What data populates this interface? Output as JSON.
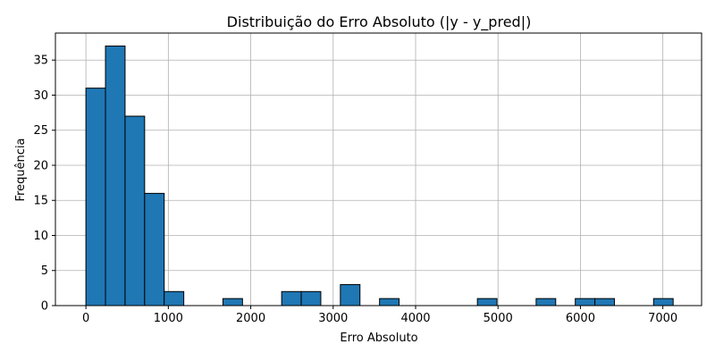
{
  "chart_data": {
    "type": "bar",
    "title": "Distribuição do Erro Absoluto (|y - y_pred|)",
    "xlabel": "Erro Absoluto",
    "ylabel": "Frequência",
    "xlim": [
      -370,
      7470
    ],
    "ylim": [
      0,
      38.85
    ],
    "xticks": [
      0,
      1000,
      2000,
      3000,
      4000,
      5000,
      6000,
      7000
    ],
    "yticks": [
      0,
      5,
      10,
      15,
      20,
      25,
      30,
      35
    ],
    "grid": true,
    "bin_width": 237.5,
    "bins": [
      {
        "start": 0,
        "end": 237.5,
        "count": 31
      },
      {
        "start": 237.5,
        "end": 475,
        "count": 37
      },
      {
        "start": 475,
        "end": 712.5,
        "count": 27
      },
      {
        "start": 712.5,
        "end": 950,
        "count": 16
      },
      {
        "start": 950,
        "end": 1187.5,
        "count": 2
      },
      {
        "start": 1187.5,
        "end": 1425,
        "count": 0
      },
      {
        "start": 1425,
        "end": 1662.5,
        "count": 0
      },
      {
        "start": 1662.5,
        "end": 1900,
        "count": 1
      },
      {
        "start": 1900,
        "end": 2137.5,
        "count": 0
      },
      {
        "start": 2137.5,
        "end": 2375,
        "count": 0
      },
      {
        "start": 2375,
        "end": 2612.5,
        "count": 2
      },
      {
        "start": 2612.5,
        "end": 2850,
        "count": 2
      },
      {
        "start": 2850,
        "end": 3087.5,
        "count": 0
      },
      {
        "start": 3087.5,
        "end": 3325,
        "count": 3
      },
      {
        "start": 3325,
        "end": 3562.5,
        "count": 0
      },
      {
        "start": 3562.5,
        "end": 3800,
        "count": 1
      },
      {
        "start": 3800,
        "end": 4037.5,
        "count": 0
      },
      {
        "start": 4037.5,
        "end": 4275,
        "count": 0
      },
      {
        "start": 4275,
        "end": 4512.5,
        "count": 0
      },
      {
        "start": 4512.5,
        "end": 4750,
        "count": 0
      },
      {
        "start": 4750,
        "end": 4987.5,
        "count": 1
      },
      {
        "start": 4987.5,
        "end": 5225,
        "count": 0
      },
      {
        "start": 5225,
        "end": 5462.5,
        "count": 0
      },
      {
        "start": 5462.5,
        "end": 5700,
        "count": 1
      },
      {
        "start": 5700,
        "end": 5937.5,
        "count": 0
      },
      {
        "start": 5937.5,
        "end": 6175,
        "count": 1
      },
      {
        "start": 6175,
        "end": 6412.5,
        "count": 1
      },
      {
        "start": 6412.5,
        "end": 6650,
        "count": 0
      },
      {
        "start": 6650,
        "end": 6887.5,
        "count": 0
      },
      {
        "start": 6887.5,
        "end": 7125,
        "count": 1
      }
    ],
    "colors": {
      "bar_fill": "#1f77b4",
      "bar_edge": "#000000",
      "grid": "#b0b0b0",
      "axis": "#000000"
    }
  }
}
